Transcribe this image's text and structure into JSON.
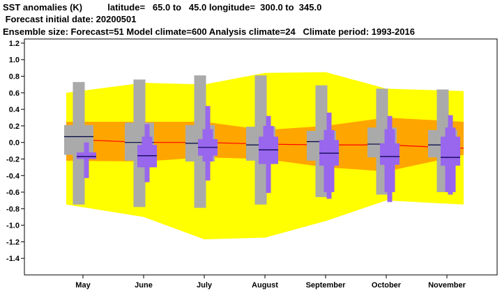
{
  "header": {
    "line1": "SST anomalies (K)          latitude=   65.0 to   45.0 longitude=  300.0 to  345.0",
    "line2": " Forecast initial date: 20200501",
    "line3": "Ensemble size: Forecast=51 Model climate=600 Analysis climate=24   Climate period: 1993-2016"
  },
  "chart_data": {
    "type": "box",
    "title": "SST anomalies (K)",
    "categories": [
      "May",
      "June",
      "July",
      "August",
      "September",
      "October",
      "November"
    ],
    "ylim": [
      -1.6,
      1.25
    ],
    "yticks": [
      1.2,
      1.0,
      0.8,
      0.6,
      0.4,
      0.2,
      0.0,
      -0.2,
      -0.4,
      -0.6,
      -0.8,
      -1.0,
      -1.2,
      -1.4
    ],
    "ytick_labels": [
      "1.2",
      "1.0",
      "0.8",
      "0.6",
      "0.4",
      "0.2",
      "0.0",
      "-0.2",
      "-0.4",
      "-0.6",
      "-0.8",
      "-1.0",
      "-1.2",
      "-1.4"
    ],
    "analysis_climate_envelope": {
      "outer_upper": [
        0.6,
        0.72,
        0.7,
        0.84,
        0.85,
        0.65,
        0.62
      ],
      "outer_lower": [
        -0.75,
        -0.9,
        -1.17,
        -1.15,
        -0.95,
        -0.7,
        -0.75
      ],
      "inner_upper": [
        0.25,
        0.25,
        0.25,
        0.15,
        0.2,
        0.3,
        0.25
      ],
      "inner_lower": [
        -0.22,
        -0.23,
        -0.18,
        -0.2,
        -0.3,
        -0.35,
        -0.15
      ],
      "median": [
        0.04,
        0.0,
        0.0,
        -0.02,
        -0.03,
        -0.03,
        -0.07
      ]
    },
    "model_climate": [
      {
        "min": -0.75,
        "p10": -0.15,
        "p25": -0.15,
        "p75": 0.21,
        "p90": 0.21,
        "max": 0.73,
        "median": 0.07
      },
      {
        "min": -0.78,
        "p10": -0.22,
        "p25": -0.22,
        "p75": 0.24,
        "p90": 0.24,
        "max": 0.76,
        "median": 0.0
      },
      {
        "min": -0.79,
        "p10": -0.23,
        "p25": -0.23,
        "p75": 0.21,
        "p90": 0.21,
        "max": 0.81,
        "median": -0.01
      },
      {
        "min": -0.75,
        "p10": -0.22,
        "p25": -0.22,
        "p75": 0.19,
        "p90": 0.19,
        "max": 0.81,
        "median": -0.03
      },
      {
        "min": -0.66,
        "p10": -0.22,
        "p25": -0.22,
        "p75": 0.14,
        "p90": 0.14,
        "max": 0.69,
        "median": 0.01
      },
      {
        "min": -0.63,
        "p10": -0.18,
        "p25": -0.18,
        "p75": 0.18,
        "p90": 0.18,
        "max": 0.65,
        "median": -0.02
      },
      {
        "min": -0.6,
        "p10": -0.18,
        "p25": -0.18,
        "p75": 0.15,
        "p90": 0.15,
        "max": 0.64,
        "median": -0.03
      }
    ],
    "forecast": [
      {
        "min": -0.43,
        "p10": -0.2,
        "p25": -0.2,
        "p75": -0.12,
        "p90": -0.12,
        "max": 0.0,
        "median": -0.17
      },
      {
        "min": -0.48,
        "p10": -0.3,
        "p25": -0.3,
        "p75": -0.03,
        "p90": 0.07,
        "max": 0.22,
        "median": -0.16
      },
      {
        "min": -0.46,
        "p10": -0.23,
        "p25": -0.16,
        "p75": 0.04,
        "p90": 0.16,
        "max": 0.44,
        "median": -0.06
      },
      {
        "min": -0.61,
        "p10": -0.26,
        "p25": -0.26,
        "p75": 0.07,
        "p90": 0.2,
        "max": 0.32,
        "median": -0.09
      },
      {
        "min": -0.68,
        "p10": -0.6,
        "p25": -0.28,
        "p75": 0.03,
        "p90": 0.15,
        "max": 0.36,
        "median": -0.13
      },
      {
        "min": -0.72,
        "p10": -0.6,
        "p25": -0.27,
        "p75": -0.01,
        "p90": 0.16,
        "max": 0.32,
        "median": -0.17
      },
      {
        "min": -0.63,
        "p10": -0.6,
        "p25": -0.28,
        "p75": 0.07,
        "p90": 0.18,
        "max": 0.33,
        "median": -0.18
      }
    ],
    "colors": {
      "outer_envelope": "#ffff00",
      "inner_envelope": "#ffa500",
      "median_line": "#ff0000",
      "model_climate": "#aaaaaa",
      "forecast": "#9966ee",
      "median_tick": "#000044"
    },
    "grid": false
  }
}
